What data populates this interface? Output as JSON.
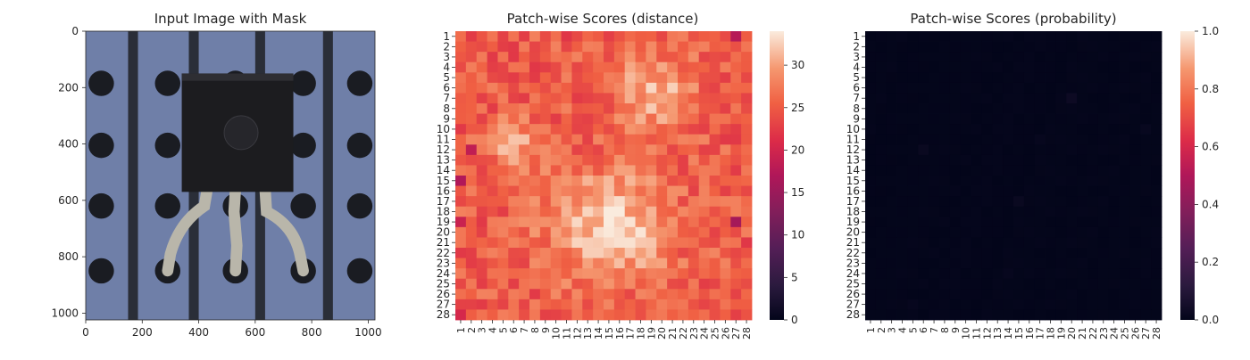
{
  "chart_data": [
    {
      "type": "image",
      "title": "Input Image with Mask",
      "xticks": [
        0,
        200,
        400,
        600,
        800,
        1000
      ],
      "yticks": [
        0,
        200,
        400,
        600,
        800,
        1000
      ],
      "xlim": [
        0,
        1024
      ],
      "ylim": [
        0,
        1024
      ],
      "colors": {
        "board": "#6f7fa8",
        "stripe": "#2a2e38",
        "hole": "#1a1c22",
        "package": "#1c1c1f",
        "lead": "#b9b6aa"
      }
    },
    {
      "type": "heatmap",
      "title": "Patch-wise Scores (distance)",
      "rows": 28,
      "cols": 28,
      "colorbar": {
        "ticks": [
          0,
          5,
          10,
          15,
          20,
          25,
          30
        ],
        "range": [
          0,
          34
        ]
      },
      "value_range_shown": [
        16,
        34
      ]
    },
    {
      "type": "heatmap",
      "title": "Patch-wise Scores (probability)",
      "rows": 28,
      "cols": 28,
      "colorbar": {
        "ticks": [
          "0.0",
          "0.2",
          "0.4",
          "0.6",
          "0.8",
          "1.0"
        ],
        "range": [
          0,
          1
        ]
      },
      "value_range_shown": [
        0,
        0.03
      ]
    }
  ]
}
